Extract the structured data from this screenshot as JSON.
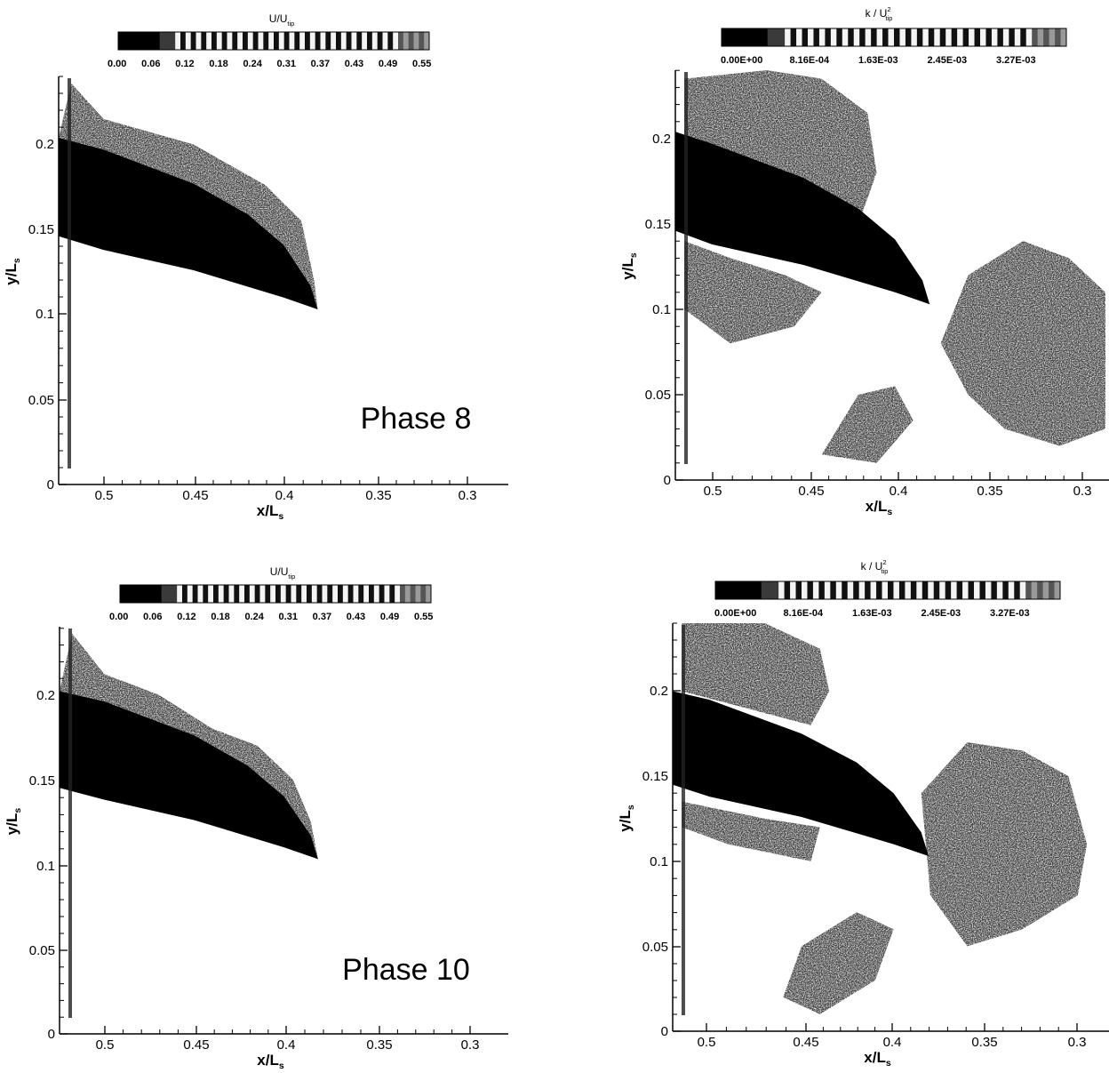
{
  "chart_data": [
    {
      "type": "heatmap",
      "variable": "U/U_tip",
      "colorbar": {
        "title": "U/U",
        "title_sub": "tip",
        "ticks": [
          "0.00",
          "0.06",
          "0.12",
          "0.18",
          "0.24",
          "0.31",
          "0.37",
          "0.43",
          "0.49",
          "0.55"
        ]
      },
      "annotation": "Phase 8",
      "xlabel": "x/L",
      "xlabel_sub": "s",
      "ylabel": "y/L",
      "ylabel_sub": "s",
      "xlim": [
        0.525,
        0.275
      ],
      "ylim": [
        0,
        0.24
      ],
      "xticks": [
        "0.5",
        "0.45",
        "0.4",
        "0.35",
        "0.3"
      ],
      "yticks": [
        "0",
        "0.05",
        "0.1",
        "0.15",
        "0.2"
      ],
      "blade": {
        "upper": [
          [
            0.525,
            0.204
          ],
          [
            0.5,
            0.197
          ],
          [
            0.45,
            0.177
          ],
          [
            0.42,
            0.159
          ],
          [
            0.4,
            0.141
          ],
          [
            0.385,
            0.117
          ],
          [
            0.381,
            0.103
          ]
        ],
        "lower": [
          [
            0.381,
            0.103
          ],
          [
            0.4,
            0.11
          ],
          [
            0.45,
            0.126
          ],
          [
            0.5,
            0.138
          ],
          [
            0.525,
            0.146
          ]
        ]
      },
      "region": {
        "outline": [
          [
            0.518,
            0.236
          ],
          [
            0.5,
            0.215
          ],
          [
            0.45,
            0.2
          ],
          [
            0.41,
            0.176
          ],
          [
            0.39,
            0.155
          ],
          [
            0.383,
            0.12
          ]
        ]
      }
    },
    {
      "type": "heatmap",
      "variable": "k/U_tip^2",
      "colorbar": {
        "title": "k / U",
        "title_sub": "tip",
        "title_sup": "2",
        "ticks": [
          "0.00E+00",
          "8.16E-04",
          "1.63E-03",
          "2.45E-03",
          "3.27E-03"
        ]
      },
      "annotation": "",
      "xlabel": "x/L",
      "xlabel_sub": "s",
      "ylabel": "y/L",
      "ylabel_sub": "s",
      "xlim": [
        0.52,
        0.283
      ],
      "ylim": [
        0,
        0.24
      ],
      "xticks": [
        "0.5",
        "0.45",
        "0.4",
        "0.35",
        "0.3"
      ],
      "yticks": [
        "0",
        "0.05",
        "0.1",
        "0.15",
        "0.2"
      ],
      "blade": {
        "upper": [
          [
            0.52,
            0.204
          ],
          [
            0.5,
            0.197
          ],
          [
            0.45,
            0.177
          ],
          [
            0.42,
            0.159
          ],
          [
            0.4,
            0.141
          ],
          [
            0.385,
            0.117
          ],
          [
            0.381,
            0.103
          ]
        ],
        "lower": [
          [
            0.381,
            0.103
          ],
          [
            0.4,
            0.11
          ],
          [
            0.45,
            0.126
          ],
          [
            0.5,
            0.138
          ],
          [
            0.52,
            0.146
          ]
        ]
      },
      "regions": [
        {
          "outline": [
            [
              0.515,
              0.235
            ],
            [
              0.47,
              0.24
            ],
            [
              0.44,
              0.235
            ],
            [
              0.415,
              0.215
            ],
            [
              0.41,
              0.18
            ],
            [
              0.42,
              0.15
            ],
            [
              0.445,
              0.16
            ],
            [
              0.48,
              0.17
            ],
            [
              0.515,
              0.18
            ]
          ]
        },
        {
          "outline": [
            [
              0.515,
              0.14
            ],
            [
              0.49,
              0.13
            ],
            [
              0.46,
              0.12
            ],
            [
              0.44,
              0.11
            ],
            [
              0.455,
              0.09
            ],
            [
              0.49,
              0.08
            ],
            [
              0.515,
              0.1
            ]
          ]
        },
        {
          "outline": [
            [
              0.36,
              0.12
            ],
            [
              0.33,
              0.14
            ],
            [
              0.305,
              0.13
            ],
            [
              0.285,
              0.11
            ],
            [
              0.285,
              0.03
            ],
            [
              0.31,
              0.02
            ],
            [
              0.34,
              0.03
            ],
            [
              0.36,
              0.05
            ],
            [
              0.375,
              0.08
            ]
          ]
        },
        {
          "outline": [
            [
              0.42,
              0.05
            ],
            [
              0.4,
              0.055
            ],
            [
              0.39,
              0.035
            ],
            [
              0.41,
              0.01
            ],
            [
              0.44,
              0.015
            ]
          ]
        }
      ]
    },
    {
      "type": "heatmap",
      "variable": "U/U_tip",
      "colorbar": {
        "title": "U/U",
        "title_sub": "tip",
        "ticks": [
          "0.00",
          "0.06",
          "0.12",
          "0.18",
          "0.24",
          "0.31",
          "0.37",
          "0.43",
          "0.49",
          "0.55"
        ]
      },
      "annotation": "Phase 10",
      "xlabel": "x/L",
      "xlabel_sub": "s",
      "ylabel": "y/L",
      "ylabel_sub": "s",
      "xlim": [
        0.525,
        0.275
      ],
      "ylim": [
        0,
        0.24
      ],
      "xticks": [
        "0.5",
        "0.45",
        "0.4",
        "0.35",
        "0.3"
      ],
      "yticks": [
        "0",
        "0.05",
        "0.1",
        "0.15",
        "0.2"
      ],
      "blade": {
        "upper": [
          [
            0.525,
            0.202
          ],
          [
            0.5,
            0.196
          ],
          [
            0.45,
            0.176
          ],
          [
            0.42,
            0.158
          ],
          [
            0.4,
            0.14
          ],
          [
            0.385,
            0.117
          ],
          [
            0.381,
            0.103
          ]
        ],
        "lower": [
          [
            0.381,
            0.103
          ],
          [
            0.4,
            0.11
          ],
          [
            0.45,
            0.126
          ],
          [
            0.5,
            0.138
          ],
          [
            0.525,
            0.145
          ]
        ]
      },
      "region": {
        "outline": [
          [
            0.518,
            0.236
          ],
          [
            0.5,
            0.212
          ],
          [
            0.47,
            0.2
          ],
          [
            0.44,
            0.18
          ],
          [
            0.415,
            0.17
          ],
          [
            0.395,
            0.15
          ],
          [
            0.385,
            0.125
          ]
        ]
      }
    },
    {
      "type": "heatmap",
      "variable": "k/U_tip^2",
      "colorbar": {
        "title": "k / U",
        "title_sub": "tip",
        "title_sup": "2",
        "ticks": [
          "0.00E+00",
          "8.16E-04",
          "1.63E-03",
          "2.45E-03",
          "3.27E-03"
        ]
      },
      "annotation": "",
      "xlabel": "x/L",
      "xlabel_sub": "s",
      "ylabel": "y/L",
      "ylabel_sub": "s",
      "xlim": [
        0.52,
        0.283
      ],
      "ylim": [
        0,
        0.24
      ],
      "xticks": [
        "0.5",
        "0.45",
        "0.4",
        "0.35",
        "0.3"
      ],
      "yticks": [
        "0",
        "0.05",
        "0.1",
        "0.15",
        "0.2"
      ],
      "blade": {
        "upper": [
          [
            0.52,
            0.2
          ],
          [
            0.5,
            0.195
          ],
          [
            0.45,
            0.175
          ],
          [
            0.42,
            0.158
          ],
          [
            0.4,
            0.14
          ],
          [
            0.385,
            0.117
          ],
          [
            0.381,
            0.103
          ]
        ],
        "lower": [
          [
            0.381,
            0.103
          ],
          [
            0.4,
            0.11
          ],
          [
            0.45,
            0.126
          ],
          [
            0.5,
            0.138
          ],
          [
            0.52,
            0.145
          ]
        ]
      },
      "regions": [
        {
          "outline": [
            [
              0.515,
              0.24
            ],
            [
              0.47,
              0.24
            ],
            [
              0.44,
              0.225
            ],
            [
              0.435,
              0.2
            ],
            [
              0.445,
              0.18
            ],
            [
              0.48,
              0.19
            ],
            [
              0.515,
              0.2
            ]
          ]
        },
        {
          "outline": [
            [
              0.515,
              0.135
            ],
            [
              0.47,
              0.125
            ],
            [
              0.44,
              0.12
            ],
            [
              0.445,
              0.1
            ],
            [
              0.49,
              0.11
            ],
            [
              0.515,
              0.12
            ]
          ]
        },
        {
          "outline": [
            [
              0.385,
              0.14
            ],
            [
              0.36,
              0.17
            ],
            [
              0.33,
              0.165
            ],
            [
              0.305,
              0.15
            ],
            [
              0.295,
              0.11
            ],
            [
              0.3,
              0.08
            ],
            [
              0.33,
              0.06
            ],
            [
              0.36,
              0.05
            ],
            [
              0.38,
              0.08
            ]
          ]
        },
        {
          "outline": [
            [
              0.42,
              0.07
            ],
            [
              0.4,
              0.06
            ],
            [
              0.41,
              0.03
            ],
            [
              0.44,
              0.01
            ],
            [
              0.46,
              0.02
            ],
            [
              0.45,
              0.05
            ]
          ]
        }
      ]
    }
  ]
}
